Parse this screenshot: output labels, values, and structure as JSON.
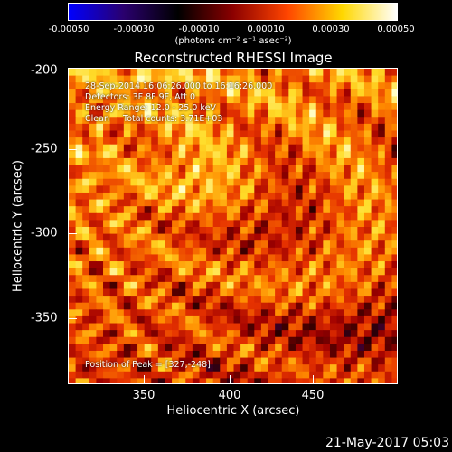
{
  "colorbar": {
    "ticks": [
      "-0.00050",
      "-0.00030",
      "-0.00010",
      "0.00010",
      "0.00030",
      "0.00050"
    ],
    "units": "(photons cm⁻² s⁻¹ asec⁻²)",
    "colormap": [
      "#0000ff",
      "#2a006e",
      "#000000",
      "#8b0000",
      "#ff4500",
      "#ffd700",
      "#ffffff"
    ]
  },
  "title": "Reconstructed RHESSI Image",
  "annotations": {
    "line1": "28-Sep-2014 16:06:26.000 to 16:16:26.000",
    "line2": "Detectors: 3F 8F 9F, Att 0",
    "line3": "Energy Range: 12.0 - 25.0 keV",
    "line4": "Clean     Total counts: 3.71E+03",
    "peak": "Position of Peak = [327,-248]"
  },
  "axes": {
    "xlabel": "Heliocentric X (arcsec)",
    "ylabel": "Heliocentric Y (arcsec)",
    "xticks": [
      "350",
      "400",
      "450"
    ],
    "yticks": [
      "-200",
      "-250",
      "-300",
      "-350"
    ],
    "xlim": [
      305,
      492
    ],
    "ylim": [
      -394,
      -199
    ]
  },
  "timestamp": "21-May-2017 05:03"
}
